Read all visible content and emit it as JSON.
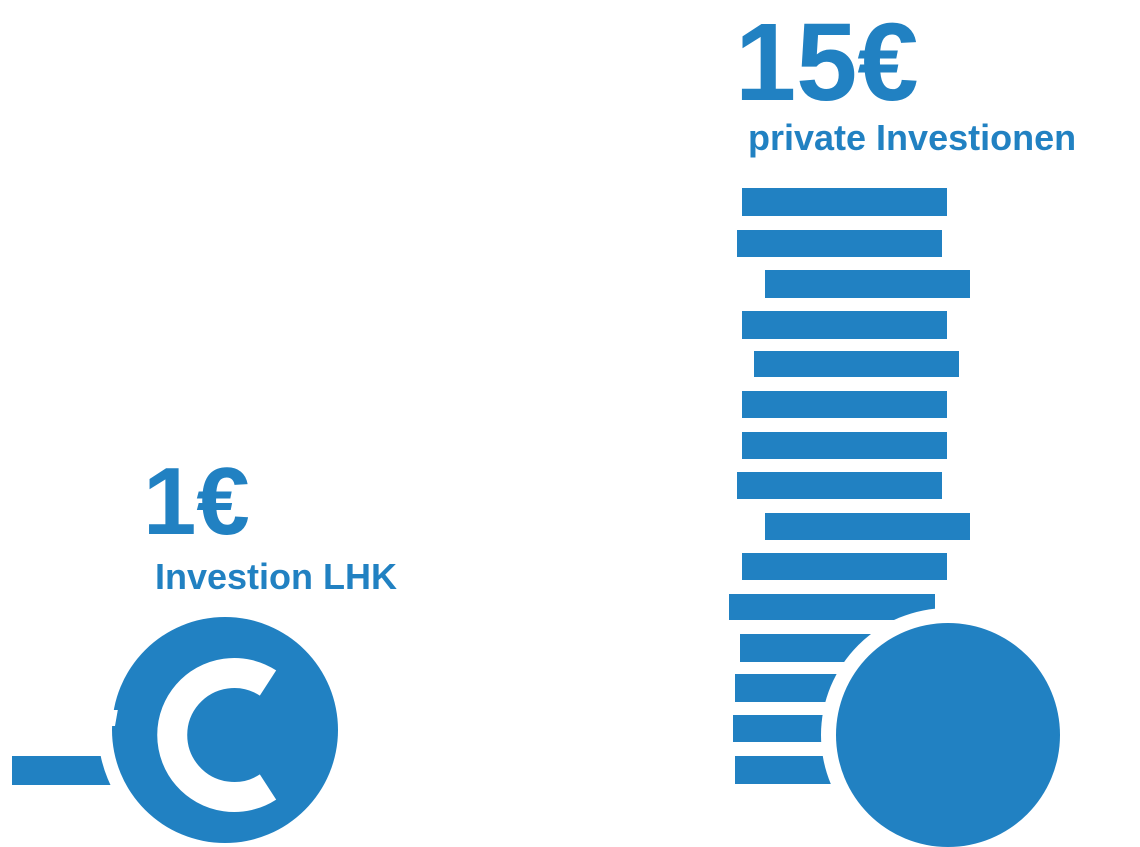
{
  "left": {
    "amount": "1€",
    "label": "Investion LHK"
  },
  "right": {
    "amount": "15€",
    "label": "private Investionen"
  }
}
